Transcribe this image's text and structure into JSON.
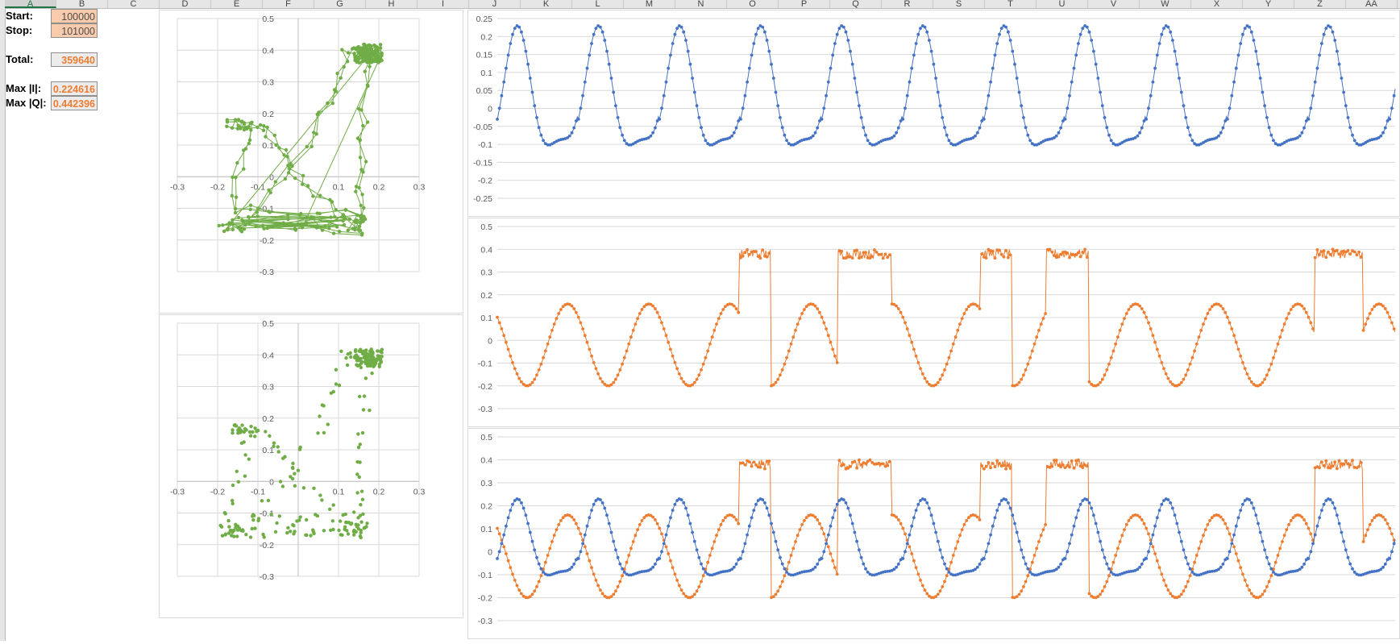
{
  "column_headers": [
    "A",
    "B",
    "C",
    "D",
    "E",
    "F",
    "G",
    "H",
    "I",
    "J",
    "K",
    "L",
    "M",
    "N",
    "O",
    "P",
    "Q",
    "R",
    "S",
    "T",
    "U",
    "V",
    "W",
    "X",
    "Y",
    "Z",
    "AA"
  ],
  "selected_column": "A",
  "params": {
    "start_label": "Start:",
    "start_value": "100000",
    "stop_label": "Stop:",
    "stop_value": "101000",
    "total_label": "Total:",
    "total_value": "359640",
    "maxi_label": "Max |I|:",
    "maxi_value": "0.224616",
    "maxq_label": "Max |Q|:",
    "maxq_value": "0.442396"
  },
  "colors": {
    "iq": "#70ad47",
    "i": "#4472c4",
    "q": "#ed7d31",
    "accent": "#217346"
  },
  "chart_data": [
    {
      "type": "scatter",
      "style": "line+markers",
      "name": "iq-constellation-lines",
      "xlim": [
        -0.3,
        0.3
      ],
      "ylim": [
        -0.3,
        0.5
      ],
      "xticks": [
        "-0.3",
        "-0.2",
        "-0.1",
        "0",
        "0.1",
        "0.2",
        "0.3"
      ],
      "yticks": [
        "0.5",
        "0.4",
        "0.3",
        "0.2",
        "0.1",
        "0",
        "-0.1",
        "-0.2",
        "-0.3"
      ],
      "grid": true,
      "color": "#70ad47"
    },
    {
      "type": "scatter",
      "style": "markers",
      "name": "iq-constellation-points",
      "xlim": [
        -0.3,
        0.3
      ],
      "ylim": [
        -0.3,
        0.5
      ],
      "xticks": [
        "-0.3",
        "-0.2",
        "-0.1",
        "0",
        "0.1",
        "0.2",
        "0.3"
      ],
      "yticks": [
        "0.5",
        "0.4",
        "0.3",
        "0.2",
        "0.1",
        "0",
        "-0.1",
        "-0.2",
        "-0.3"
      ],
      "grid": true,
      "color": "#70ad47"
    },
    {
      "type": "line",
      "name": "i-signal",
      "ylim": [
        -0.25,
        0.25
      ],
      "yticks": [
        "0.25",
        "0.2",
        "0.15",
        "0.1",
        "0.05",
        "0",
        "-0.05",
        "-0.1",
        "-0.15",
        "-0.2",
        "-0.25"
      ],
      "grid": true,
      "color": "#4472c4"
    },
    {
      "type": "line",
      "name": "q-signal",
      "ylim": [
        -0.3,
        0.5
      ],
      "yticks": [
        "0.5",
        "0.4",
        "0.3",
        "0.2",
        "0.1",
        "0",
        "-0.1",
        "-0.2",
        "-0.3"
      ],
      "grid": true,
      "color": "#ed7d31"
    },
    {
      "type": "line",
      "name": "i-and-q-signals",
      "ylim": [
        -0.3,
        0.5
      ],
      "yticks": [
        "0.5",
        "0.4",
        "0.3",
        "0.2",
        "0.1",
        "0",
        "-0.1",
        "-0.2",
        "-0.3"
      ],
      "grid": true,
      "colors": [
        "#ed7d31",
        "#4472c4"
      ]
    }
  ]
}
